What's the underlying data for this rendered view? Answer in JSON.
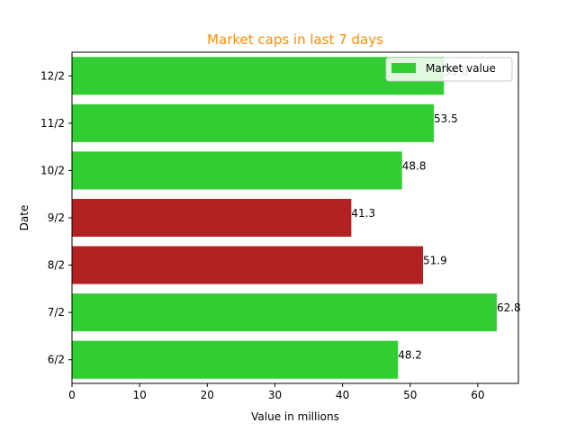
{
  "chart_data": {
    "type": "bar",
    "orientation": "horizontal",
    "title": "Market caps in last 7 days",
    "title_color": "#ff8c00",
    "xlabel": "Value in millions",
    "ylabel": "Date",
    "categories": [
      "6/2",
      "7/2",
      "8/2",
      "9/2",
      "10/2",
      "11/2",
      "12/2"
    ],
    "values": [
      48.2,
      62.8,
      51.9,
      41.3,
      48.8,
      53.5,
      55.0
    ],
    "value_labels": [
      "48.2",
      "62.8",
      "51.9",
      "41.3",
      "48.8",
      "53.5",
      "55.0"
    ],
    "bar_colors": [
      "#32cd32",
      "#32cd32",
      "#b22222",
      "#b22222",
      "#32cd32",
      "#32cd32",
      "#32cd32"
    ],
    "xlim": [
      0,
      66
    ],
    "xticks": [
      0,
      10,
      20,
      30,
      40,
      50,
      60
    ],
    "grid": false,
    "legend": {
      "position": "top-right",
      "entries": [
        {
          "label": "Market value",
          "color": "#32cd32"
        }
      ]
    }
  }
}
